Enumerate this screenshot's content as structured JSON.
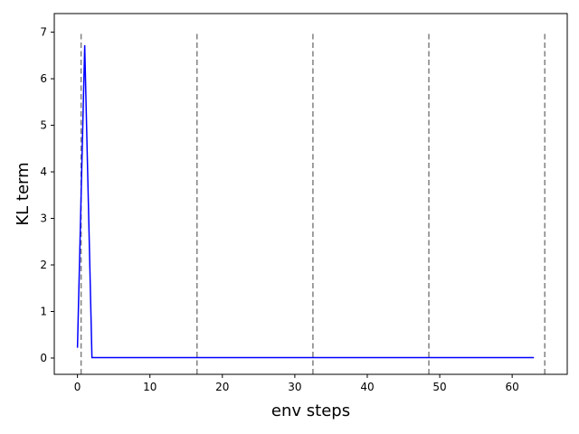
{
  "chart_data": {
    "type": "line",
    "title": "",
    "xlabel": "env steps",
    "ylabel": "KL term",
    "xlim": [
      -3.2,
      67.6
    ],
    "ylim": [
      -0.35,
      7.4
    ],
    "x_ticks": [
      0,
      10,
      20,
      30,
      40,
      50,
      60
    ],
    "y_ticks": [
      0,
      1,
      2,
      3,
      4,
      5,
      6,
      7
    ],
    "grid": false,
    "series": [
      {
        "color": "#0000ff",
        "x": [
          0,
          1,
          2,
          3,
          4,
          5,
          6,
          7,
          8,
          9,
          10,
          11,
          12,
          13,
          14,
          15,
          16,
          17,
          18,
          19,
          20,
          21,
          22,
          23,
          24,
          25,
          26,
          27,
          28,
          29,
          30,
          31,
          32,
          33,
          34,
          35,
          36,
          37,
          38,
          39,
          40,
          41,
          42,
          43,
          44,
          45,
          46,
          47,
          48,
          49,
          50,
          51,
          52,
          53,
          54,
          55,
          56,
          57,
          58,
          59,
          60,
          61,
          62,
          63
        ],
        "y": [
          0.22,
          6.72,
          0.01,
          0.01,
          0.01,
          0.01,
          0.01,
          0.01,
          0.01,
          0.01,
          0.01,
          0.01,
          0.01,
          0.01,
          0.01,
          0.01,
          0.01,
          0.01,
          0.01,
          0.01,
          0.01,
          0.01,
          0.01,
          0.01,
          0.01,
          0.01,
          0.01,
          0.01,
          0.01,
          0.01,
          0.01,
          0.01,
          0.01,
          0.01,
          0.01,
          0.01,
          0.01,
          0.01,
          0.01,
          0.01,
          0.01,
          0.01,
          0.01,
          0.01,
          0.01,
          0.01,
          0.01,
          0.01,
          0.01,
          0.01,
          0.01,
          0.01,
          0.01,
          0.01,
          0.01,
          0.01,
          0.01,
          0.01,
          0.01,
          0.01,
          0.01,
          0.01,
          0.01,
          0.01
        ]
      }
    ],
    "vlines": {
      "x": [
        0.5,
        16.5,
        32.5,
        48.5,
        64.5
      ],
      "ymin": -0.35,
      "ymax": 7.0,
      "color": "#808080",
      "style": "dashed"
    }
  }
}
